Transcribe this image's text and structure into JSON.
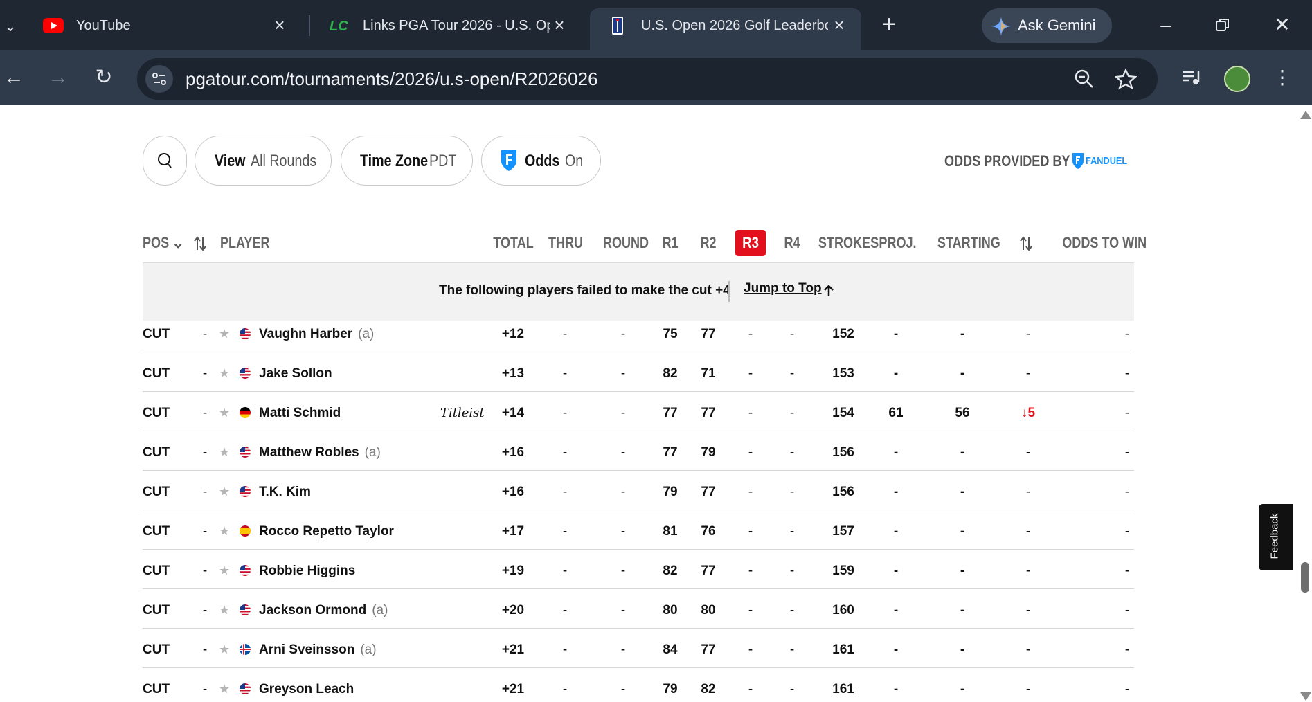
{
  "browser": {
    "tabs": [
      {
        "title": "YouTube",
        "icon": "youtube-icon"
      },
      {
        "title": "Links PGA Tour 2026 - U.S. Op",
        "icon": "lc-icon"
      },
      {
        "title": "U.S. Open 2026 Golf Leaderbo",
        "icon": "pga-tour-icon",
        "active": true
      }
    ],
    "ask_gemini": "Ask Gemini",
    "url": "pgatour.com/tournaments/2026/u.s-open/R2026026"
  },
  "filters": {
    "search_icon": "search-icon",
    "view_label": "View",
    "view_value": "All Rounds",
    "timezone_label": "Time Zone",
    "timezone_value": "PDT",
    "odds_label": "Odds",
    "odds_value": "On",
    "odds_provided_by": "ODDS PROVIDED BY",
    "odds_brand": "FANDUEL"
  },
  "table": {
    "headers": {
      "pos": "POS",
      "player": "PLAYER",
      "total": "TOTAL",
      "thru": "THRU",
      "round": "ROUND",
      "r1": "R1",
      "r2": "R2",
      "r3": "R3",
      "r4": "R4",
      "strokes": "STROKES",
      "proj": "PROJ.",
      "starting": "STARTING",
      "odds": "ODDS TO WIN"
    },
    "cut_banner": "The following players failed to make the cut +4",
    "jump_to_top": "Jump to Top",
    "rows": [
      {
        "pos": "CUT",
        "move": "-",
        "name": "Vaughn Harber",
        "amateur": "(a)",
        "flag": "us",
        "sponsor": "",
        "total": "+12",
        "thru": "-",
        "round": "-",
        "r1": "75",
        "r2": "77",
        "r3": "-",
        "r4": "-",
        "strokes": "152",
        "proj": "-",
        "starting": "-",
        "change": "-",
        "odds": "-"
      },
      {
        "pos": "CUT",
        "move": "-",
        "name": "Jake Sollon",
        "amateur": "",
        "flag": "us",
        "sponsor": "",
        "total": "+13",
        "thru": "-",
        "round": "-",
        "r1": "82",
        "r2": "71",
        "r3": "-",
        "r4": "-",
        "strokes": "153",
        "proj": "-",
        "starting": "-",
        "change": "-",
        "odds": "-"
      },
      {
        "pos": "CUT",
        "move": "-",
        "name": "Matti Schmid",
        "amateur": "",
        "flag": "de",
        "sponsor": "Titleist",
        "total": "+14",
        "thru": "-",
        "round": "-",
        "r1": "77",
        "r2": "77",
        "r3": "-",
        "r4": "-",
        "strokes": "154",
        "proj": "61",
        "starting": "56",
        "change": "↓5",
        "odds": "-"
      },
      {
        "pos": "CUT",
        "move": "-",
        "name": "Matthew Robles",
        "amateur": "(a)",
        "flag": "us",
        "sponsor": "",
        "total": "+16",
        "thru": "-",
        "round": "-",
        "r1": "77",
        "r2": "79",
        "r3": "-",
        "r4": "-",
        "strokes": "156",
        "proj": "-",
        "starting": "-",
        "change": "-",
        "odds": "-"
      },
      {
        "pos": "CUT",
        "move": "-",
        "name": "T.K. Kim",
        "amateur": "",
        "flag": "us",
        "sponsor": "",
        "total": "+16",
        "thru": "-",
        "round": "-",
        "r1": "79",
        "r2": "77",
        "r3": "-",
        "r4": "-",
        "strokes": "156",
        "proj": "-",
        "starting": "-",
        "change": "-",
        "odds": "-"
      },
      {
        "pos": "CUT",
        "move": "-",
        "name": "Rocco Repetto Taylor",
        "amateur": "",
        "flag": "es",
        "sponsor": "",
        "total": "+17",
        "thru": "-",
        "round": "-",
        "r1": "81",
        "r2": "76",
        "r3": "-",
        "r4": "-",
        "strokes": "157",
        "proj": "-",
        "starting": "-",
        "change": "-",
        "odds": "-"
      },
      {
        "pos": "CUT",
        "move": "-",
        "name": "Robbie Higgins",
        "amateur": "",
        "flag": "us",
        "sponsor": "",
        "total": "+19",
        "thru": "-",
        "round": "-",
        "r1": "82",
        "r2": "77",
        "r3": "-",
        "r4": "-",
        "strokes": "159",
        "proj": "-",
        "starting": "-",
        "change": "-",
        "odds": "-"
      },
      {
        "pos": "CUT",
        "move": "-",
        "name": "Jackson Ormond",
        "amateur": "(a)",
        "flag": "us",
        "sponsor": "",
        "total": "+20",
        "thru": "-",
        "round": "-",
        "r1": "80",
        "r2": "80",
        "r3": "-",
        "r4": "-",
        "strokes": "160",
        "proj": "-",
        "starting": "-",
        "change": "-",
        "odds": "-"
      },
      {
        "pos": "CUT",
        "move": "-",
        "name": "Arni Sveinsson",
        "amateur": "(a)",
        "flag": "is",
        "sponsor": "",
        "total": "+21",
        "thru": "-",
        "round": "-",
        "r1": "84",
        "r2": "77",
        "r3": "-",
        "r4": "-",
        "strokes": "161",
        "proj": "-",
        "starting": "-",
        "change": "-",
        "odds": "-"
      },
      {
        "pos": "CUT",
        "move": "-",
        "name": "Greyson Leach",
        "amateur": "",
        "flag": "us",
        "sponsor": "",
        "total": "+21",
        "thru": "-",
        "round": "-",
        "r1": "79",
        "r2": "82",
        "r3": "-",
        "r4": "-",
        "strokes": "161",
        "proj": "-",
        "starting": "-",
        "change": "-",
        "odds": "-"
      }
    ]
  },
  "feedback_label": "Feedback",
  "colors": {
    "accent_red": "#e20f1c",
    "fanduel_blue": "#1493ff",
    "chrome_dark": "#1f2733"
  }
}
